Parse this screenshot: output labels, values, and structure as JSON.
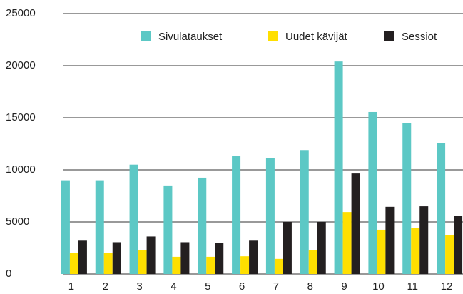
{
  "chart_data": {
    "type": "bar",
    "categories": [
      "1",
      "2",
      "3",
      "4",
      "5",
      "6",
      "7",
      "8",
      "9",
      "10",
      "11",
      "12"
    ],
    "series": [
      {
        "name": "Sivulataukset",
        "color": "#5cc8c5",
        "values": [
          9000,
          9000,
          10500,
          8500,
          9250,
          11300,
          11150,
          11900,
          20400,
          15550,
          14500,
          12550
        ]
      },
      {
        "name": "Uudet kävijät",
        "color": "#ffdf00",
        "values": [
          2050,
          2000,
          2300,
          1650,
          1650,
          1700,
          1450,
          2300,
          5950,
          4250,
          4400,
          3750
        ]
      },
      {
        "name": "Sessiot",
        "color": "#231f20",
        "values": [
          3200,
          3050,
          3600,
          3050,
          2950,
          3200,
          5000,
          5000,
          9650,
          6450,
          6500,
          5550
        ]
      }
    ],
    "ylim": [
      0,
      25000
    ],
    "yticks": [
      0,
      5000,
      10000,
      15000,
      20000,
      25000
    ],
    "grid": true
  }
}
